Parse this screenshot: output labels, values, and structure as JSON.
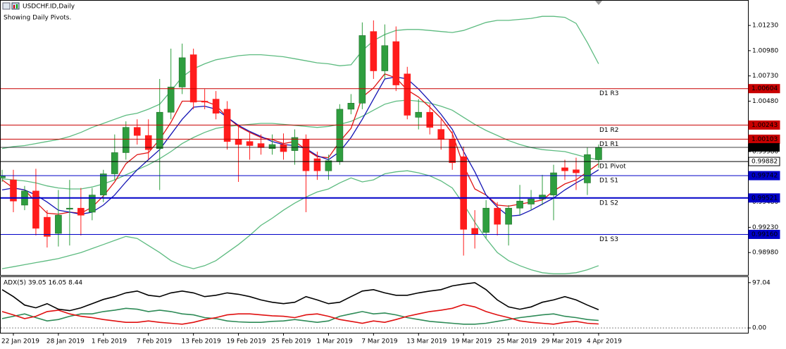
{
  "chart_data": [
    {
      "type": "candlestick",
      "title": "USDCHF.ID,Daily",
      "subtitle": "Showing Daily Pivots.",
      "categories": [
        null,
        "22 Jan 2019",
        null,
        null,
        null,
        "28 Jan 2019",
        null,
        null,
        null,
        "1 Feb 2019",
        null,
        null,
        null,
        "7 Feb 2019",
        null,
        null,
        null,
        "13 Feb 2019",
        null,
        null,
        null,
        "19 Feb 2019",
        null,
        null,
        null,
        "25 Feb 2019",
        null,
        null,
        null,
        "1 Mar 2019",
        null,
        null,
        null,
        "7 Mar 2019",
        null,
        null,
        null,
        "13 Mar 2019",
        null,
        null,
        null,
        "19 Mar 2019",
        null,
        null,
        null,
        "25 Mar 2019",
        null,
        null,
        null,
        "29 Mar 2019",
        null,
        null,
        null,
        "4 Apr 2019"
      ],
      "open": [
        0.9972,
        0.997,
        0.9945,
        0.9959,
        0.9933,
        0.9917,
        0.9941,
        0.9942,
        0.9938,
        0.9955,
        0.9976,
        0.9997,
        1.0022,
        1.0014,
        1.0001,
        1.0037,
        1.0062,
        1.0094,
        1.0048,
        1.005,
        1.004,
        1.001,
        1.0008,
        1.0006,
        1.0001,
        1.0005,
        0.9999,
        1.001,
        0.9991,
        0.9979,
        0.9988,
        1.004,
        1.0046,
        1.0117,
        1.0078,
        1.0107,
        1.0075,
        1.0032,
        1.0037,
        1.002,
        1.001,
        0.9993,
        0.9922,
        0.9918,
        0.9942,
        0.9926,
        0.9942,
        0.9946,
        0.9951,
        0.9955,
        0.9982,
        0.998,
        0.9967,
        0.999
      ],
      "high": [
        0.998,
        0.998,
        0.9964,
        0.9981,
        0.994,
        0.996,
        0.997,
        0.9962,
        0.9962,
        0.998,
        1.0015,
        1.0028,
        1.003,
        1.003,
        1.007,
        1.01,
        1.0105,
        1.01,
        1.006,
        1.0058,
        1.0048,
        1.0025,
        1.0018,
        1.0015,
        1.0015,
        1.0016,
        1.002,
        1.0015,
        0.9998,
        0.9995,
        1.0045,
        1.0055,
        1.0126,
        1.0128,
        1.0124,
        1.0122,
        1.0082,
        1.005,
        1.0045,
        1.003,
        1.0018,
        1.0003,
        0.994,
        0.995,
        0.9948,
        0.9945,
        0.9965,
        0.996,
        0.9975,
        0.9985,
        0.999,
        0.9992,
        1.0002,
        1.0005
      ],
      "low": [
        0.9968,
        0.9938,
        0.994,
        0.9915,
        0.9903,
        0.9904,
        0.9905,
        0.9915,
        0.993,
        0.9948,
        0.997,
        0.999,
        1.0005,
        0.999,
        0.996,
        1.003,
        1.0055,
        1.004,
        1.004,
        1.003,
        1.0,
        0.9968,
        0.999,
        0.9995,
        0.9995,
        0.999,
        0.9985,
        0.9938,
        0.997,
        0.997,
        0.9985,
        1.0035,
        1.004,
        1.007,
        1.007,
        1.0058,
        1.003,
        1.002,
        1.0015,
        1.0,
        0.998,
        0.9895,
        0.9902,
        0.9912,
        0.9915,
        0.9905,
        0.9935,
        0.994,
        0.9945,
        0.993,
        0.997,
        0.996,
        0.9955,
        0.9982
      ],
      "close": [
        0.9974,
        0.9949,
        0.9959,
        0.9922,
        0.9914,
        0.9935,
        0.9942,
        0.9935,
        0.9955,
        0.9976,
        0.9997,
        1.0022,
        1.0014,
        1.0,
        1.0037,
        1.0062,
        1.0091,
        1.0047,
        1.0047,
        1.0036,
        1.0008,
        1.0005,
        1.0004,
        1.0002,
        1.0005,
        0.9998,
        1.0012,
        0.9979,
        0.9979,
        0.9989,
        1.004,
        1.0046,
        1.0113,
        1.0078,
        1.0103,
        1.0064,
        1.0034,
        1.0037,
        1.0022,
        1.001,
        0.9987,
        0.9921,
        0.9916,
        0.9942,
        0.9926,
        0.9942,
        0.9949,
        0.9951,
        0.9955,
        0.9977,
        0.9979,
        0.9977,
        0.9995,
        1.0002
      ],
      "up_color": "#2f9e3f",
      "down_color": "#ff1c1c",
      "series": [
        {
          "color": "#5dbb80",
          "values": [
            1.0001,
            1.0003,
            1.0004,
            1.0006,
            1.0008,
            1.001,
            1.0013,
            1.0017,
            1.0022,
            1.0026,
            1.003,
            1.0034,
            1.0036,
            1.004,
            1.0045,
            1.0058,
            1.0072,
            1.008,
            1.0085,
            1.0089,
            1.0091,
            1.0093,
            1.0094,
            1.0094,
            1.0093,
            1.0092,
            1.009,
            1.0088,
            1.0086,
            1.0085,
            1.0083,
            1.0084,
            1.0098,
            1.0108,
            1.0114,
            1.0118,
            1.0119,
            1.0119,
            1.0118,
            1.0117,
            1.0116,
            1.0118,
            1.0122,
            1.0126,
            1.0128,
            1.0128,
            1.0129,
            1.013,
            1.0132,
            1.0132,
            1.0131,
            1.0125,
            1.0106,
            1.0085
          ]
        },
        {
          "color": "#5dbb80",
          "values": [
            0.9971,
            0.997,
            0.9969,
            0.9967,
            0.9964,
            0.9962,
            0.9961,
            0.9961,
            0.9963,
            0.9966,
            0.997,
            0.9975,
            0.998,
            0.9985,
            0.9991,
            0.9998,
            1.0006,
            1.0012,
            1.0017,
            1.0021,
            1.0023,
            1.0024,
            1.0025,
            1.0026,
            1.0026,
            1.0025,
            1.0024,
            1.0023,
            1.0022,
            1.0023,
            1.0025,
            1.0028,
            1.0033,
            1.0039,
            1.0045,
            1.0048,
            1.0049,
            1.0048,
            1.0046,
            1.0043,
            1.0039,
            1.0032,
            1.0025,
            1.0019,
            1.0014,
            1.0009,
            1.0005,
            1.0002,
            1.0,
            0.9999,
            0.9998,
            0.9995,
            0.9992,
            0.999
          ]
        },
        {
          "color": "#5dbb80",
          "values": [
            0.9882,
            0.9884,
            0.9886,
            0.9888,
            0.989,
            0.9892,
            0.9895,
            0.9898,
            0.9902,
            0.9906,
            0.991,
            0.9914,
            0.9912,
            0.9905,
            0.9898,
            0.989,
            0.9885,
            0.9882,
            0.9885,
            0.989,
            0.9898,
            0.9906,
            0.9915,
            0.9925,
            0.9932,
            0.994,
            0.9947,
            0.9953,
            0.9958,
            0.9961,
            0.9967,
            0.9972,
            0.9968,
            0.997,
            0.9976,
            0.9978,
            0.9979,
            0.9977,
            0.9974,
            0.9969,
            0.9962,
            0.9946,
            0.9928,
            0.9912,
            0.9898,
            0.989,
            0.9885,
            0.9881,
            0.9878,
            0.9877,
            0.9877,
            0.9878,
            0.9881,
            0.9885
          ]
        },
        {
          "color": "#e01414",
          "values": [
            0.997,
            0.9962,
            0.996,
            0.9948,
            0.9937,
            0.9936,
            0.9938,
            0.9937,
            0.9943,
            0.9954,
            0.9968,
            0.9986,
            0.9995,
            0.9997,
            1.001,
            1.0027,
            1.0048,
            1.0048,
            1.0048,
            1.0044,
            1.0032,
            1.0023,
            1.0017,
            1.0012,
            1.001,
            1.0006,
            1.0008,
            1.0,
            0.9993,
            0.9992,
            1.0008,
            1.0021,
            1.0052,
            1.0061,
            1.0075,
            1.0071,
            1.0059,
            1.0052,
            1.0042,
            1.0031,
            1.0016,
            0.9984,
            0.9961,
            0.9955,
            0.9945,
            0.9944,
            0.9946,
            0.9948,
            0.995,
            0.9959,
            0.9966,
            0.997,
            0.9978,
            0.9986
          ]
        },
        {
          "color": "#1414b4",
          "values": [
            0.996,
            0.9962,
            0.996,
            0.9955,
            0.9948,
            0.994,
            0.9938,
            0.9936,
            0.9938,
            0.9945,
            0.9955,
            0.9968,
            0.998,
            0.999,
            1.0,
            1.0015,
            1.003,
            1.0042,
            1.0043,
            1.004,
            1.0032,
            1.0024,
            1.0018,
            1.0013,
            1.0008,
            1.0005,
            1.0004,
            1.0001,
            0.9994,
            0.999,
            0.9998,
            1.0012,
            1.003,
            1.005,
            1.007,
            1.0072,
            1.007,
            1.006,
            1.0048,
            1.0035,
            1.002,
            0.9998,
            0.9978,
            0.9955,
            0.9943,
            0.9934,
            0.9935,
            0.994,
            0.9946,
            0.9952,
            0.996,
            0.9967,
            0.9973,
            0.998
          ]
        }
      ],
      "pivots": {
        "labels": [
          "D1 R3",
          "D1 R2",
          "D1 R1",
          "D1 Pivot",
          "D1 S1",
          "D1 S2",
          "D1 S3"
        ],
        "values": [
          1.00604,
          1.00243,
          1.00103,
          0.99882,
          0.99742,
          0.99521,
          0.9916
        ],
        "value_labels": [
          "1.00604",
          "1.00243",
          "1.00103",
          "0.99882",
          "0.99742",
          "0.99521",
          "0.99160"
        ],
        "colors": [
          "#c80000",
          "#c80000",
          "#c80000",
          "#000000",
          "#0000c8",
          "#0000c8",
          "#0000c8"
        ]
      },
      "last_price": 1.00022,
      "ylim": [
        0.98751,
        1.01482
      ],
      "yticks": [
        {
          "value": 1.0123,
          "label": "1.01230"
        },
        {
          "value": 1.0098,
          "label": "1.00980"
        },
        {
          "value": 1.0073,
          "label": "1.00730"
        },
        {
          "value": 1.0048,
          "label": "1.00480"
        },
        {
          "value": 0.9998,
          "label": "0.99980"
        },
        {
          "value": 0.9948,
          "label": "0.99480"
        },
        {
          "value": 0.9923,
          "label": "0.99230"
        },
        {
          "value": 0.9898,
          "label": "0.98980"
        }
      ]
    },
    {
      "type": "line",
      "title": "ADX(5) 39.05 16.05 8.44",
      "series": [
        {
          "color": "#000000",
          "values": [
            82,
            67,
            49,
            43,
            52,
            40,
            37,
            43,
            52,
            61,
            67,
            75,
            79,
            70,
            67,
            75,
            79,
            75,
            67,
            70,
            75,
            72,
            67,
            60,
            55,
            52,
            55,
            67,
            60,
            52,
            55,
            67,
            79,
            82,
            75,
            70,
            70,
            75,
            79,
            82,
            90,
            94,
            97,
            82,
            60,
            45,
            40,
            45,
            55,
            60,
            67,
            60,
            49,
            39.05
          ]
        },
        {
          "color": "#2e8b57",
          "values": [
            20,
            25,
            30,
            22,
            15,
            18,
            25,
            30,
            30,
            35,
            38,
            42,
            40,
            35,
            38,
            35,
            30,
            28,
            22,
            20,
            15,
            13,
            12,
            12,
            14,
            15,
            18,
            15,
            12,
            15,
            25,
            30,
            35,
            30,
            32,
            28,
            22,
            18,
            14,
            12,
            10,
            8,
            8,
            10,
            14,
            18,
            22,
            25,
            28,
            30,
            25,
            22,
            18,
            16.05
          ]
        },
        {
          "color": "#e01010",
          "values": [
            35,
            28,
            20,
            25,
            35,
            38,
            30,
            25,
            22,
            18,
            15,
            12,
            12,
            15,
            12,
            10,
            8,
            12,
            18,
            22,
            28,
            30,
            30,
            28,
            26,
            25,
            22,
            28,
            30,
            25,
            18,
            14,
            10,
            15,
            12,
            18,
            25,
            30,
            35,
            38,
            42,
            50,
            45,
            35,
            28,
            22,
            15,
            12,
            10,
            8,
            12,
            14,
            10,
            8.44
          ]
        }
      ],
      "ylim": [
        -10.4,
        108.9
      ],
      "yticks": [
        97.04,
        {
          "value": 0,
          "label": "0.00"
        }
      ]
    }
  ]
}
